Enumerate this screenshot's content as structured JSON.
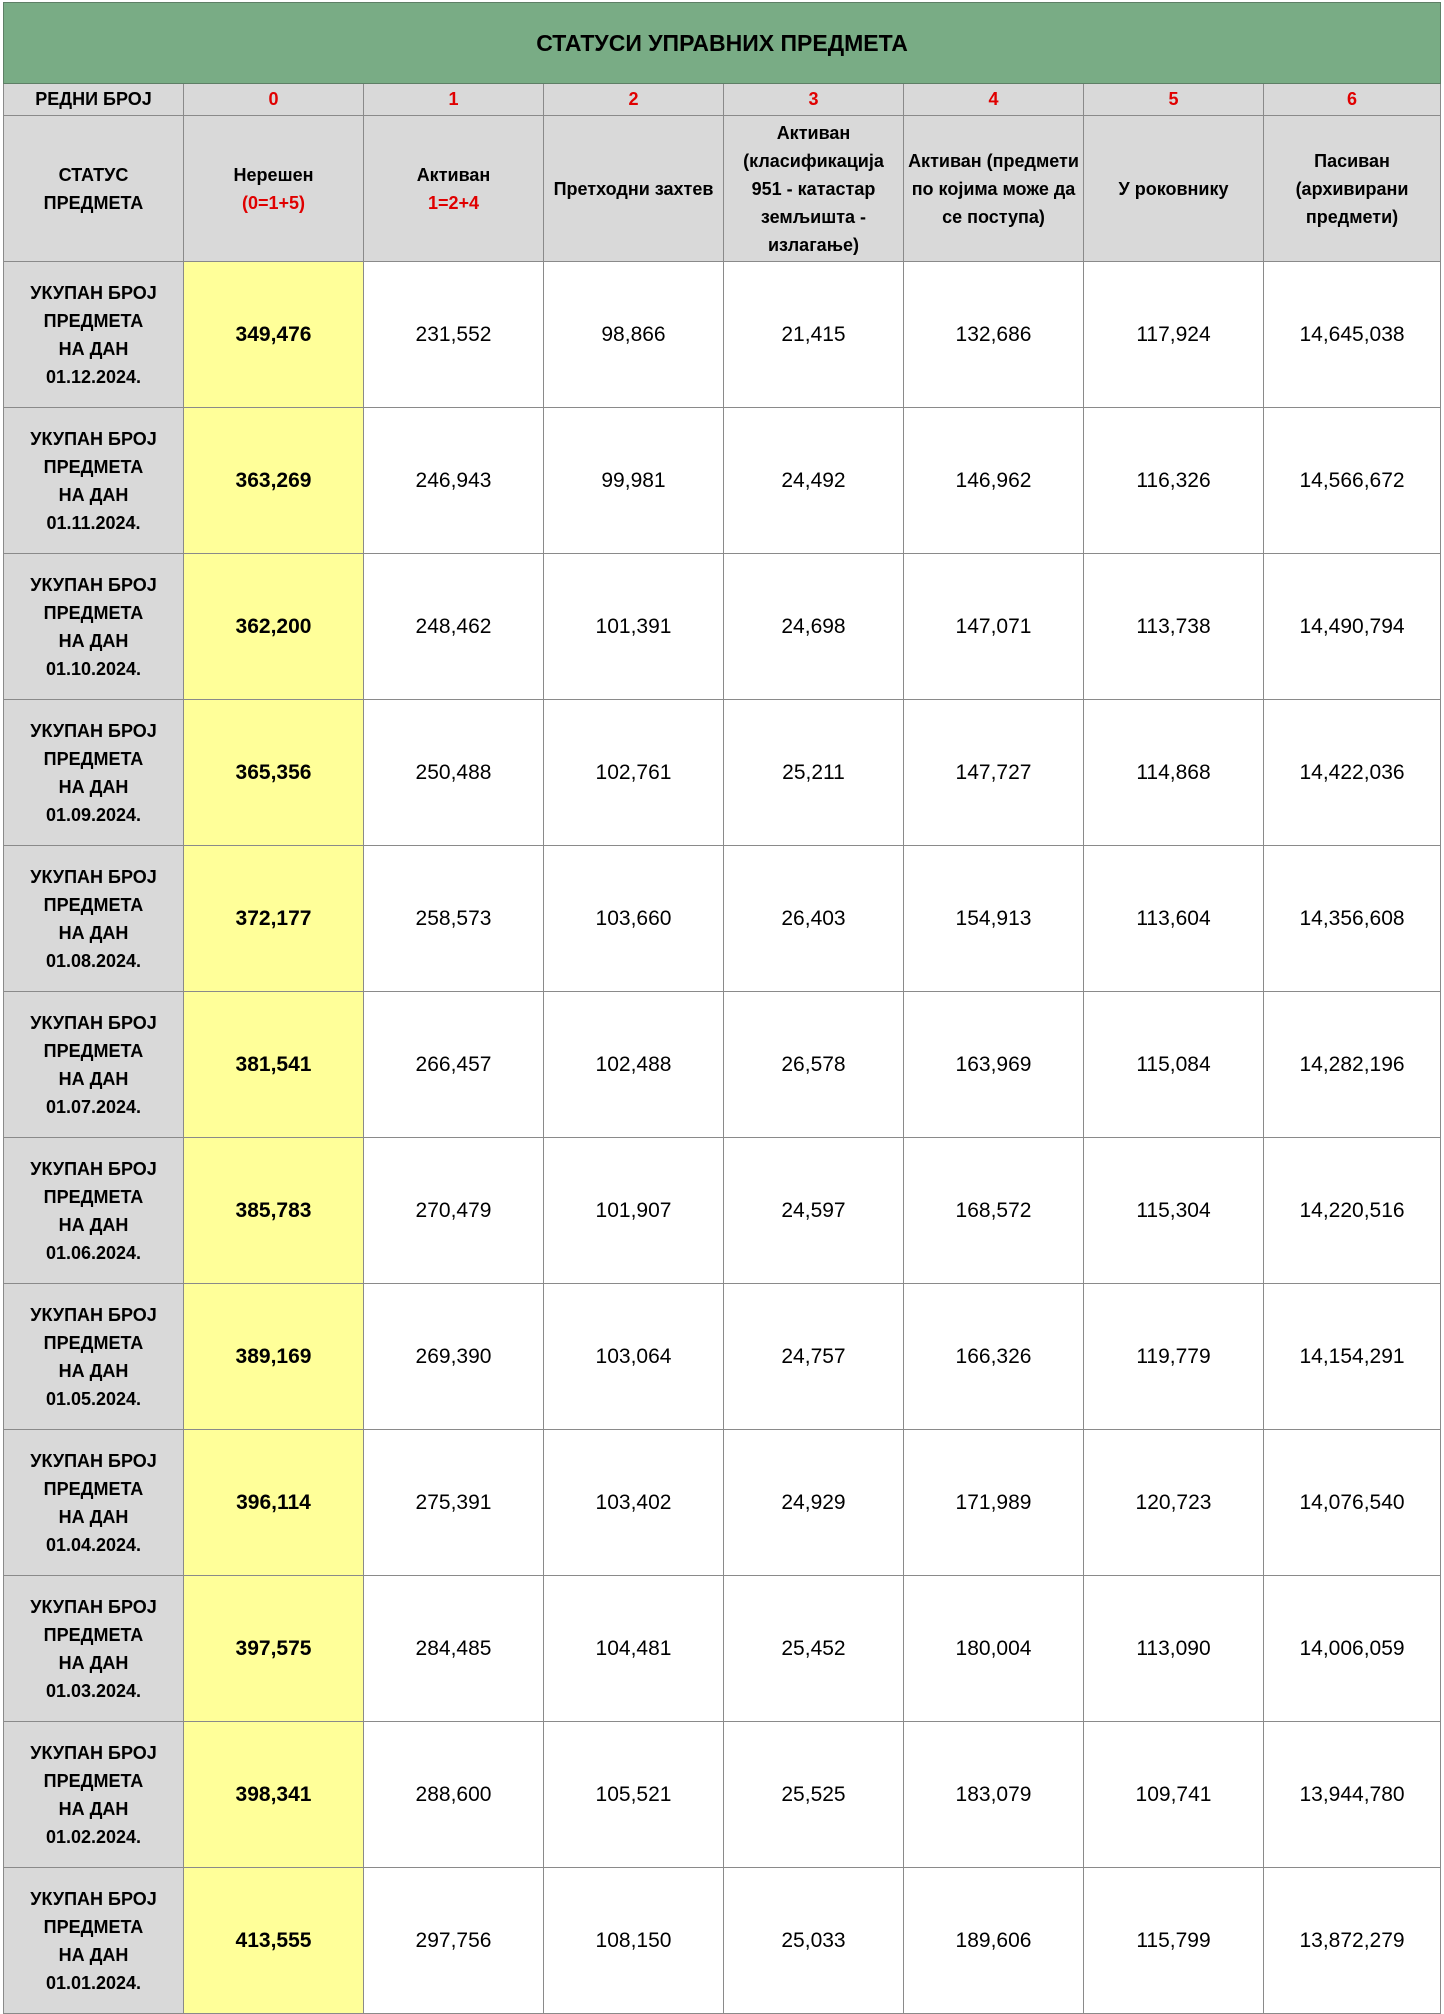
{
  "title": "СТАТУСИ УПРАВНИХ ПРЕДМЕТА",
  "number_row": {
    "label": "РЕДНИ БРОЈ",
    "numbers": [
      "0",
      "1",
      "2",
      "3",
      "4",
      "5",
      "6"
    ]
  },
  "header_row": {
    "label": "СТАТУС ПРЕДМЕТА",
    "columns": [
      {
        "text": "Нерешен",
        "formula": "(0=1+5)"
      },
      {
        "text": "Активан",
        "formula": "1=2+4"
      },
      {
        "text": "Претходни захтев",
        "formula": ""
      },
      {
        "text": "Активан (класификација 951 -  катастар земљишта - излагање)",
        "formula": ""
      },
      {
        "text": "Активан (предмети по којима може да се поступа)",
        "formula": ""
      },
      {
        "text": "У роковнику",
        "formula": ""
      },
      {
        "text": "Пасиван (архивирани предмети)",
        "formula": ""
      }
    ]
  },
  "row_label_lines": [
    "УКУПАН БРОЈ",
    "ПРЕДМЕТА",
    "НА ДАН"
  ],
  "rows": [
    {
      "date": "01.12.2024.",
      "values": [
        "349,476",
        "231,552",
        "98,866",
        "21,415",
        "132,686",
        "117,924",
        "14,645,038"
      ]
    },
    {
      "date": "01.11.2024.",
      "values": [
        "363,269",
        "246,943",
        "99,981",
        "24,492",
        "146,962",
        "116,326",
        "14,566,672"
      ]
    },
    {
      "date": "01.10.2024.",
      "values": [
        "362,200",
        "248,462",
        "101,391",
        "24,698",
        "147,071",
        "113,738",
        "14,490,794"
      ]
    },
    {
      "date": "01.09.2024.",
      "values": [
        "365,356",
        "250,488",
        "102,761",
        "25,211",
        "147,727",
        "114,868",
        "14,422,036"
      ]
    },
    {
      "date": "01.08.2024.",
      "values": [
        "372,177",
        "258,573",
        "103,660",
        "26,403",
        "154,913",
        "113,604",
        "14,356,608"
      ]
    },
    {
      "date": "01.07.2024.",
      "values": [
        "381,541",
        "266,457",
        "102,488",
        "26,578",
        "163,969",
        "115,084",
        "14,282,196"
      ]
    },
    {
      "date": "01.06.2024.",
      "values": [
        "385,783",
        "270,479",
        "101,907",
        "24,597",
        "168,572",
        "115,304",
        "14,220,516"
      ]
    },
    {
      "date": "01.05.2024.",
      "values": [
        "389,169",
        "269,390",
        "103,064",
        "24,757",
        "166,326",
        "119,779",
        "14,154,291"
      ]
    },
    {
      "date": "01.04.2024.",
      "values": [
        "396,114",
        "275,391",
        "103,402",
        "24,929",
        "171,989",
        "120,723",
        "14,076,540"
      ]
    },
    {
      "date": "01.03.2024.",
      "values": [
        "397,575",
        "284,485",
        "104,481",
        "25,452",
        "180,004",
        "113,090",
        "14,006,059"
      ]
    },
    {
      "date": "01.02.2024.",
      "values": [
        "398,341",
        "288,600",
        "105,521",
        "25,525",
        "183,079",
        "109,741",
        "13,944,780"
      ]
    },
    {
      "date": "01.01.2024.",
      "values": [
        "413,555",
        "297,756",
        "108,150",
        "25,033",
        "189,606",
        "115,799",
        "13,872,279"
      ]
    }
  ],
  "colors": {
    "title_bg": "#79ac85",
    "header_bg": "#d9d9d9",
    "highlight": "#ffff99",
    "formula_red": "#e00000"
  }
}
